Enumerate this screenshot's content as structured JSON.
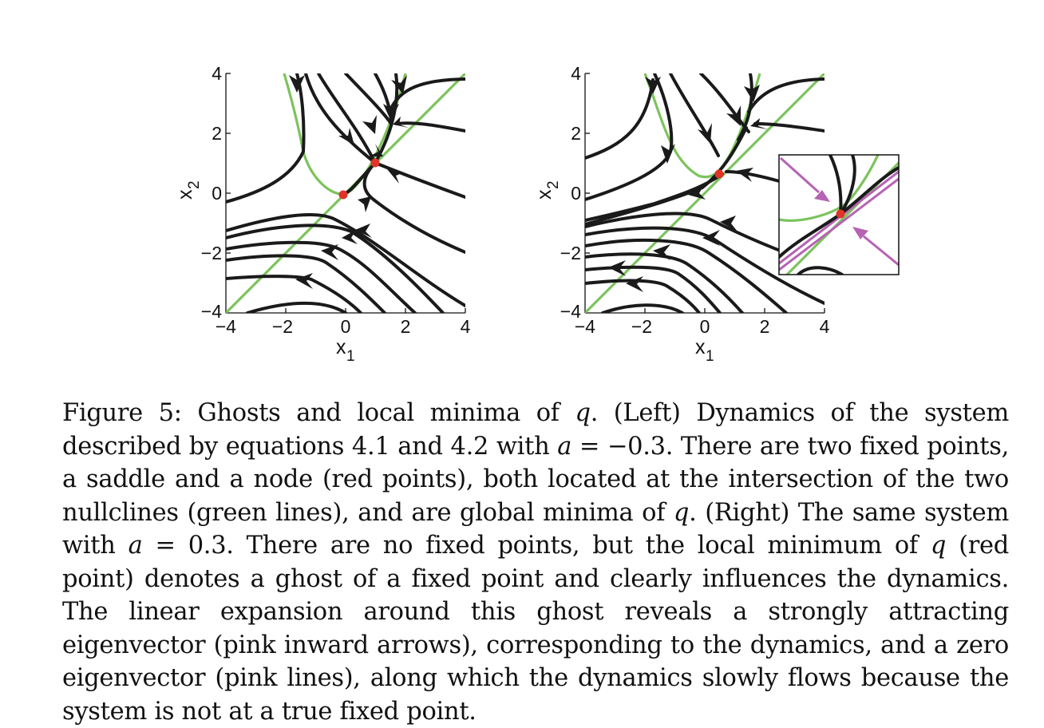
{
  "figure": {
    "panels": [
      {
        "name": "left",
        "x_label": "x",
        "x_sub": "1",
        "y_label": "x",
        "y_sub": "2",
        "x_ticks": [
          "−4",
          "−2",
          "0",
          "2",
          "4"
        ],
        "y_ticks": [
          "4",
          "2",
          "0",
          "−2",
          "−4"
        ]
      },
      {
        "name": "right",
        "x_label": "x",
        "x_sub": "1",
        "y_label": "x",
        "y_sub": "2",
        "x_ticks": [
          "−4",
          "−2",
          "0",
          "2",
          "4"
        ],
        "y_ticks": [
          "4",
          "2",
          "0",
          "−2",
          "−4"
        ]
      }
    ],
    "colors": {
      "trajectory": "#1a1a1a",
      "nullcline": "#7cc35c",
      "fixed_point": "#e0342b",
      "eigenvector": "#b663b4"
    }
  },
  "caption": {
    "label": "Figure 5:",
    "s1": " Ghosts and local minima of ",
    "q1": "q",
    "s2": ". (Left) Dynamics of the system described by equations 4.1 and 4.2 with ",
    "a1": "a",
    "s3": " = −0.3. There are two fixed points, a saddle and a node (red points), both located at the intersection of the two nullclines (green lines), and are global minima of ",
    "q2": "q",
    "s4": ". (Right) The same system with ",
    "a2": "a",
    "s5": " = 0.3. There are no fixed points, but the local minimum of ",
    "q3": "q",
    "s6": " (red point) denotes a ghost of a fixed point and clearly influences the dynamics. The linear expansion around this ghost reveals a strongly attracting eigenvector (pink inward arrows), corresponding to the dynamics, and a zero eigenvector (pink lines), along which the dynamics slowly flows because the system is not at a true fixed point."
  }
}
